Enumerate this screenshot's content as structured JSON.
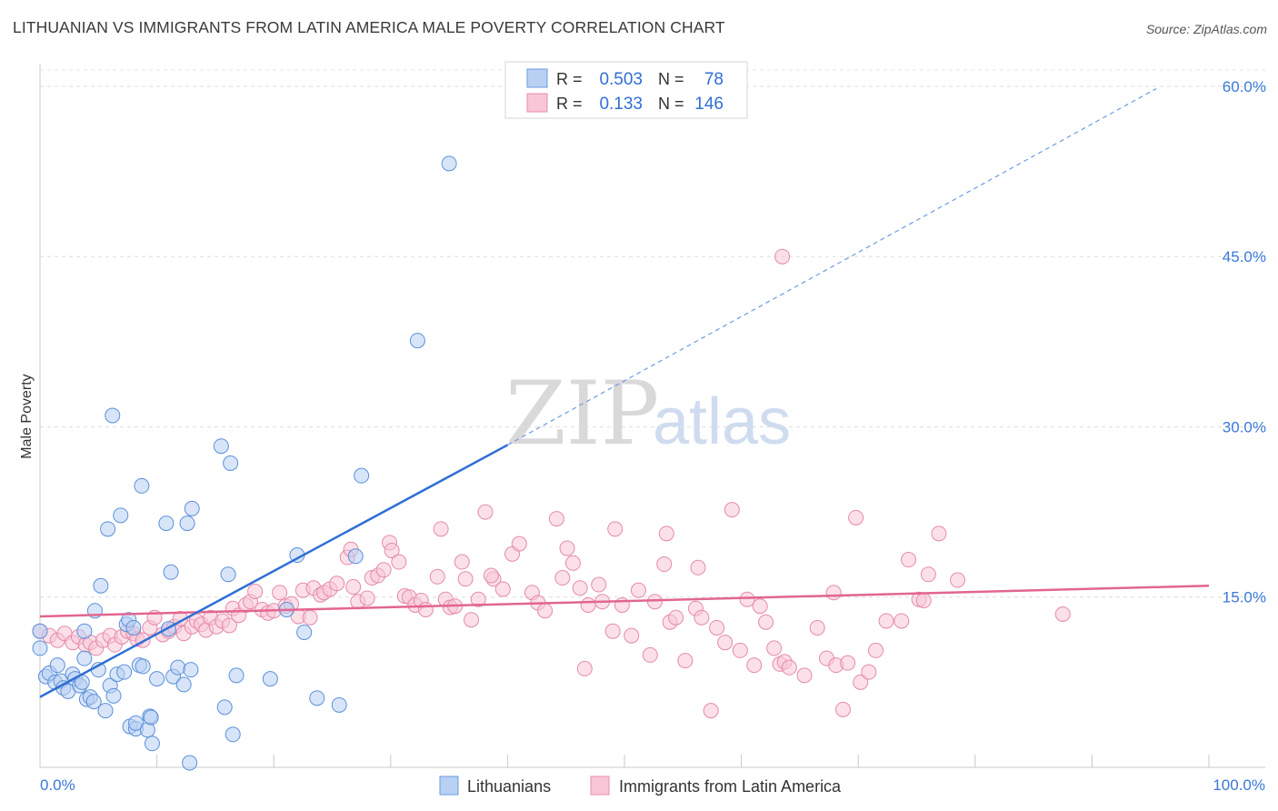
{
  "title": "LITHUANIAN VS IMMIGRANTS FROM LATIN AMERICA MALE POVERTY CORRELATION CHART",
  "source": "Source: ZipAtlas.com",
  "watermark": {
    "zip": "ZIP",
    "atlas": "atlas"
  },
  "legend": {
    "r_label": "R =",
    "n_label": "N =",
    "rows": [
      {
        "r": "0.503",
        "n": "78"
      },
      {
        "r": "0.133",
        "n": "146"
      }
    ]
  },
  "bottom_legend": [
    "Lithuanians",
    "Immigrants from Latin America"
  ],
  "chart_data": {
    "type": "scatter",
    "title": "LITHUANIAN VS IMMIGRANTS FROM LATIN AMERICA MALE POVERTY CORRELATION CHART",
    "xlabel": "",
    "ylabel": "Male Poverty",
    "xlim": [
      0,
      100
    ],
    "ylim": [
      0,
      62
    ],
    "x_tick_labels": [
      "0.0%",
      "100.0%"
    ],
    "y_ticks": [
      15,
      30,
      45,
      60
    ],
    "y_tick_labels": [
      "15.0%",
      "30.0%",
      "45.0%",
      "60.0%"
    ],
    "grid": "horizontal dashed",
    "legend_position": "top-center",
    "colors": {
      "Lithuanians": "#4a86d8",
      "Immigrants from Latin America": "#e87fa3",
      "blue_fill": "#b8d0f2",
      "pink_fill": "#f8c6d6"
    },
    "series": [
      {
        "name": "Lithuanians",
        "trend": {
          "x": [
            0,
            40
          ],
          "y": [
            6.2,
            28.4
          ],
          "extended_to": [
            95.5,
            59.8
          ]
        },
        "points": [
          [
            0,
            10.5
          ],
          [
            0,
            12
          ],
          [
            0.5,
            8
          ],
          [
            0.8,
            8.3
          ],
          [
            1.3,
            7.5
          ],
          [
            1.5,
            9
          ],
          [
            1.8,
            7.6
          ],
          [
            2,
            7
          ],
          [
            2.4,
            6.7
          ],
          [
            2.8,
            8.2
          ],
          [
            3,
            7.8
          ],
          [
            3.4,
            7.2
          ],
          [
            3.6,
            7.5
          ],
          [
            3.8,
            9.6
          ],
          [
            3.8,
            12
          ],
          [
            4,
            6
          ],
          [
            4.3,
            6.2
          ],
          [
            4.6,
            5.8
          ],
          [
            5,
            8.6
          ],
          [
            4.7,
            13.8
          ],
          [
            5.2,
            16
          ],
          [
            5.6,
            5
          ],
          [
            5.8,
            21
          ],
          [
            6,
            7.2
          ],
          [
            6.2,
            31
          ],
          [
            6.3,
            6.3
          ],
          [
            6.6,
            8.2
          ],
          [
            6.9,
            22.2
          ],
          [
            7.2,
            8.4
          ],
          [
            7.4,
            12.6
          ],
          [
            7.6,
            13
          ],
          [
            7.7,
            3.6
          ],
          [
            8,
            12.3
          ],
          [
            8.2,
            3.4
          ],
          [
            8.2,
            3.9
          ],
          [
            8.5,
            9
          ],
          [
            8.8,
            8.9
          ],
          [
            8.7,
            24.8
          ],
          [
            9.2,
            3.3
          ],
          [
            9.4,
            4.5
          ],
          [
            9.5,
            4.4
          ],
          [
            9.6,
            2.1
          ],
          [
            10,
            7.8
          ],
          [
            10.8,
            21.5
          ],
          [
            11,
            12.2
          ],
          [
            11.2,
            17.2
          ],
          [
            11.4,
            8
          ],
          [
            11.8,
            8.8
          ],
          [
            12.3,
            7.3
          ],
          [
            12.6,
            21.5
          ],
          [
            12.9,
            8.6
          ],
          [
            13,
            22.8
          ],
          [
            12.8,
            0.4
          ],
          [
            15.5,
            28.3
          ],
          [
            15.8,
            5.3
          ],
          [
            16.1,
            17
          ],
          [
            16.3,
            26.8
          ],
          [
            16.5,
            2.9
          ],
          [
            16.8,
            8.1
          ],
          [
            19.7,
            7.8
          ],
          [
            21.1,
            13.9
          ],
          [
            22,
            18.7
          ],
          [
            22.6,
            11.9
          ],
          [
            23.7,
            6.1
          ],
          [
            25.6,
            5.5
          ],
          [
            27,
            18.6
          ],
          [
            27.5,
            25.7
          ],
          [
            32.3,
            37.6
          ],
          [
            35,
            53.2
          ]
        ]
      },
      {
        "name": "Immigrants from Latin America",
        "trend": {
          "x": [
            0,
            100
          ],
          "y": [
            13.3,
            16
          ]
        },
        "points": [
          [
            0,
            12
          ],
          [
            0.8,
            11.6
          ],
          [
            1.5,
            11.2
          ],
          [
            2.1,
            11.8
          ],
          [
            2.8,
            11
          ],
          [
            3.3,
            11.5
          ],
          [
            3.9,
            10.8
          ],
          [
            4.3,
            11
          ],
          [
            4.8,
            10.5
          ],
          [
            5.4,
            11.2
          ],
          [
            6,
            11.6
          ],
          [
            6.4,
            10.8
          ],
          [
            7,
            11.5
          ],
          [
            7.5,
            12
          ],
          [
            8,
            11.8
          ],
          [
            8.3,
            11.3
          ],
          [
            8.8,
            11.2
          ],
          [
            9.4,
            12.3
          ],
          [
            9.8,
            13.2
          ],
          [
            10.5,
            11.7
          ],
          [
            11,
            12
          ],
          [
            11.5,
            12.4
          ],
          [
            12,
            13.1
          ],
          [
            12.3,
            11.8
          ],
          [
            13,
            12.4
          ],
          [
            13.4,
            12.9
          ],
          [
            13.8,
            12.6
          ],
          [
            14.2,
            12.1
          ],
          [
            14.6,
            13.2
          ],
          [
            15.1,
            12.4
          ],
          [
            15.6,
            12.9
          ],
          [
            16.2,
            12.5
          ],
          [
            16.5,
            14
          ],
          [
            17,
            13.4
          ],
          [
            17.6,
            14.3
          ],
          [
            18,
            14.6
          ],
          [
            18.4,
            15.5
          ],
          [
            19,
            13.9
          ],
          [
            19.5,
            13.6
          ],
          [
            20,
            13.8
          ],
          [
            20.5,
            15.4
          ],
          [
            21,
            14.2
          ],
          [
            21.5,
            14.4
          ],
          [
            22.1,
            13.3
          ],
          [
            22.5,
            15.6
          ],
          [
            23.1,
            13.2
          ],
          [
            23.4,
            15.8
          ],
          [
            24,
            15.2
          ],
          [
            24.3,
            15.4
          ],
          [
            24.8,
            15.7
          ],
          [
            25.4,
            16.2
          ],
          [
            26.3,
            18.5
          ],
          [
            26.6,
            19.2
          ],
          [
            26.8,
            15.9
          ],
          [
            27.2,
            14.6
          ],
          [
            28,
            14.9
          ],
          [
            28.4,
            16.7
          ],
          [
            28.9,
            16.9
          ],
          [
            29.4,
            17.4
          ],
          [
            29.9,
            19.8
          ],
          [
            30.1,
            19.1
          ],
          [
            30.7,
            18.1
          ],
          [
            31.2,
            15.1
          ],
          [
            31.6,
            15
          ],
          [
            32.1,
            14.3
          ],
          [
            32.6,
            14.7
          ],
          [
            33,
            13.9
          ],
          [
            34,
            16.8
          ],
          [
            34.3,
            21
          ],
          [
            34.7,
            14.8
          ],
          [
            35.1,
            14.1
          ],
          [
            35.5,
            14.2
          ],
          [
            36.1,
            18.1
          ],
          [
            36.4,
            16.6
          ],
          [
            36.9,
            13
          ],
          [
            37.5,
            14.8
          ],
          [
            38.1,
            22.5
          ],
          [
            38.8,
            16.6
          ],
          [
            38.6,
            16.9
          ],
          [
            39.6,
            15.7
          ],
          [
            40.4,
            18.8
          ],
          [
            41,
            19.7
          ],
          [
            42.1,
            15.4
          ],
          [
            42.6,
            14.5
          ],
          [
            43.2,
            13.8
          ],
          [
            44.2,
            21.9
          ],
          [
            44.7,
            16.7
          ],
          [
            45.1,
            19.3
          ],
          [
            45.6,
            18
          ],
          [
            46.2,
            15.8
          ],
          [
            46.6,
            8.7
          ],
          [
            46.9,
            14.3
          ],
          [
            47.8,
            16.1
          ],
          [
            48.1,
            14.6
          ],
          [
            49,
            12
          ],
          [
            49.2,
            21
          ],
          [
            49.8,
            14.3
          ],
          [
            50.6,
            11.6
          ],
          [
            51.2,
            15.6
          ],
          [
            52.2,
            9.9
          ],
          [
            52.6,
            14.6
          ],
          [
            53.4,
            17.9
          ],
          [
            53.6,
            20.6
          ],
          [
            53.9,
            12.8
          ],
          [
            54.4,
            13.2
          ],
          [
            55.2,
            9.4
          ],
          [
            56.1,
            14
          ],
          [
            56.3,
            17.6
          ],
          [
            56.6,
            13.2
          ],
          [
            57.4,
            5
          ],
          [
            57.9,
            12.3
          ],
          [
            58.6,
            11
          ],
          [
            59.2,
            22.7
          ],
          [
            59.9,
            10.3
          ],
          [
            60.5,
            14.8
          ],
          [
            61.1,
            9
          ],
          [
            61.6,
            14.2
          ],
          [
            62.1,
            12.8
          ],
          [
            62.8,
            10.5
          ],
          [
            63.3,
            9.1
          ],
          [
            63.7,
            9.3
          ],
          [
            64.1,
            8.8
          ],
          [
            63.5,
            45
          ],
          [
            65.4,
            8.1
          ],
          [
            66.5,
            12.3
          ],
          [
            67.3,
            9.6
          ],
          [
            67.9,
            15.4
          ],
          [
            68.1,
            9
          ],
          [
            68.7,
            5.1
          ],
          [
            69.1,
            9.2
          ],
          [
            69.8,
            22
          ],
          [
            70.2,
            7.5
          ],
          [
            70.9,
            8.4
          ],
          [
            71.5,
            10.3
          ],
          [
            72.4,
            12.9
          ],
          [
            73.7,
            12.9
          ],
          [
            74.3,
            18.3
          ],
          [
            75.2,
            14.8
          ],
          [
            75.6,
            14.7
          ],
          [
            76,
            17
          ],
          [
            76.9,
            20.6
          ],
          [
            78.5,
            16.5
          ],
          [
            87.5,
            13.5
          ]
        ]
      }
    ]
  }
}
